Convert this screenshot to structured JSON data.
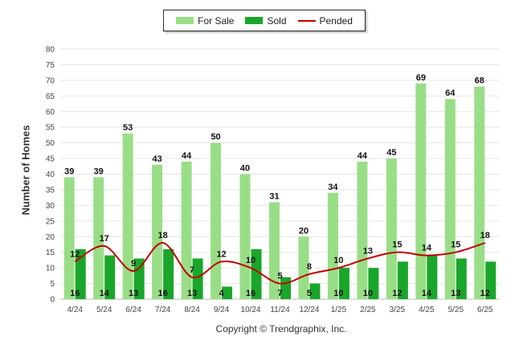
{
  "chart_data": {
    "type": "bar",
    "categories": [
      "4/24",
      "5/24",
      "6/24",
      "7/24",
      "8/24",
      "9/24",
      "10/24",
      "11/24",
      "12/24",
      "1/25",
      "2/25",
      "3/25",
      "4/25",
      "5/25",
      "6/25"
    ],
    "series": [
      {
        "name": "For Sale",
        "type": "bar",
        "color": "#99de87",
        "values": [
          39,
          39,
          53,
          43,
          44,
          50,
          40,
          31,
          20,
          34,
          44,
          45,
          69,
          64,
          68
        ]
      },
      {
        "name": "Sold",
        "type": "bar",
        "color": "#1aa62a",
        "values": [
          16,
          14,
          13,
          16,
          13,
          4,
          16,
          7,
          5,
          10,
          10,
          12,
          14,
          13,
          12
        ]
      },
      {
        "name": "Pended",
        "type": "line",
        "color": "#c00000",
        "values": [
          12,
          17,
          9,
          18,
          7,
          12,
          10,
          5,
          8,
          10,
          13,
          15,
          14,
          15,
          18
        ]
      }
    ],
    "ylabel": "Number of Homes",
    "ylim": [
      0,
      80
    ],
    "yticks": [
      0,
      5,
      10,
      15,
      20,
      25,
      30,
      35,
      40,
      45,
      50,
      55,
      60,
      65,
      70,
      75,
      80
    ],
    "grid": true,
    "legend_position": "top-center"
  },
  "legend": {
    "for_sale": "For Sale",
    "sold": "Sold",
    "pended": "Pended"
  },
  "footer": "Copyright © Trendgraphix, Inc."
}
